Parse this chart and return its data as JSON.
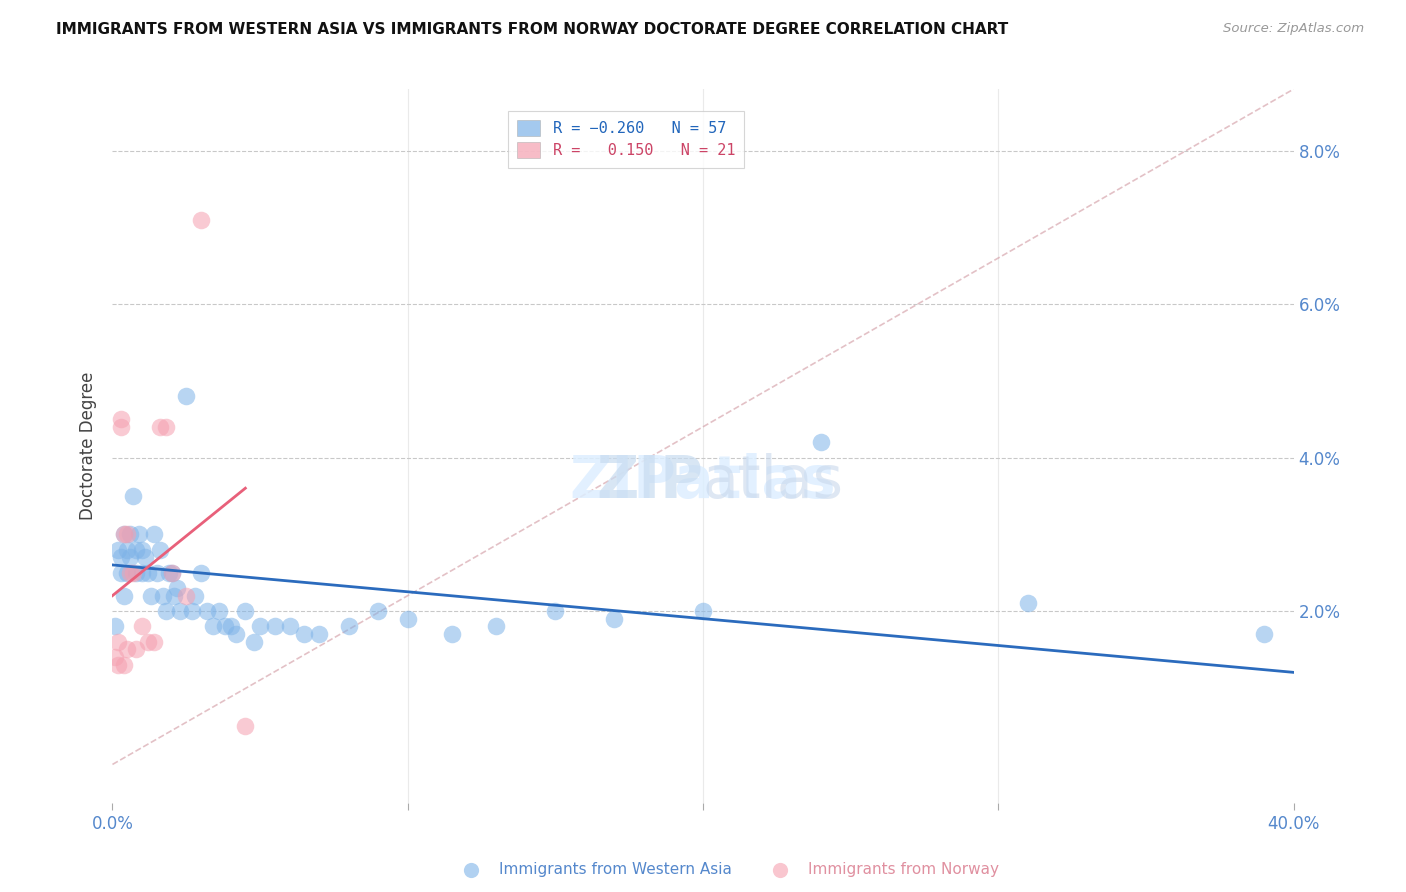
{
  "title": "IMMIGRANTS FROM WESTERN ASIA VS IMMIGRANTS FROM NORWAY DOCTORATE DEGREE CORRELATION CHART",
  "source": "Source: ZipAtlas.com",
  "ylabel": "Doctorate Degree",
  "right_yticks": [
    "2.0%",
    "4.0%",
    "6.0%",
    "8.0%"
  ],
  "right_ytick_vals": [
    0.02,
    0.04,
    0.06,
    0.08
  ],
  "xlim": [
    0.0,
    0.4
  ],
  "ylim": [
    -0.005,
    0.088
  ],
  "blue_color": "#7EB3E8",
  "pink_color": "#F5A0B0",
  "line_blue": "#2B6BBD",
  "line_pink": "#E8607A",
  "line_dashed_color": "#D4A0A8",
  "western_asia_x": [
    0.001,
    0.002,
    0.003,
    0.003,
    0.004,
    0.004,
    0.005,
    0.005,
    0.006,
    0.006,
    0.007,
    0.008,
    0.008,
    0.009,
    0.01,
    0.01,
    0.011,
    0.012,
    0.013,
    0.014,
    0.015,
    0.016,
    0.017,
    0.018,
    0.019,
    0.02,
    0.021,
    0.022,
    0.023,
    0.025,
    0.027,
    0.028,
    0.03,
    0.032,
    0.034,
    0.036,
    0.038,
    0.04,
    0.042,
    0.045,
    0.048,
    0.05,
    0.055,
    0.06,
    0.065,
    0.07,
    0.08,
    0.09,
    0.1,
    0.115,
    0.13,
    0.15,
    0.17,
    0.2,
    0.24,
    0.31,
    0.39
  ],
  "western_asia_y": [
    0.018,
    0.028,
    0.027,
    0.025,
    0.03,
    0.022,
    0.025,
    0.028,
    0.03,
    0.027,
    0.035,
    0.028,
    0.025,
    0.03,
    0.025,
    0.028,
    0.027,
    0.025,
    0.022,
    0.03,
    0.025,
    0.028,
    0.022,
    0.02,
    0.025,
    0.025,
    0.022,
    0.023,
    0.02,
    0.048,
    0.02,
    0.022,
    0.025,
    0.02,
    0.018,
    0.02,
    0.018,
    0.018,
    0.017,
    0.02,
    0.016,
    0.018,
    0.018,
    0.018,
    0.017,
    0.017,
    0.018,
    0.02,
    0.019,
    0.017,
    0.018,
    0.02,
    0.019,
    0.02,
    0.042,
    0.021,
    0.017
  ],
  "norway_x": [
    0.001,
    0.002,
    0.002,
    0.003,
    0.003,
    0.004,
    0.004,
    0.005,
    0.005,
    0.006,
    0.007,
    0.008,
    0.01,
    0.012,
    0.014,
    0.016,
    0.018,
    0.02,
    0.025,
    0.03,
    0.045
  ],
  "norway_y": [
    0.014,
    0.013,
    0.016,
    0.044,
    0.045,
    0.03,
    0.013,
    0.03,
    0.015,
    0.025,
    0.025,
    0.015,
    0.018,
    0.016,
    0.016,
    0.044,
    0.044,
    0.025,
    0.022,
    0.071,
    0.005
  ],
  "dashed_line_x": [
    0.0,
    0.4
  ],
  "dashed_line_y": [
    0.0,
    0.088
  ],
  "blue_trendline_x": [
    0.0,
    0.4
  ],
  "blue_trendline_y_start": 0.026,
  "blue_trendline_y_end": 0.012,
  "pink_trendline_x_start": 0.0,
  "pink_trendline_x_end": 0.045,
  "pink_trendline_y_start": 0.022,
  "pink_trendline_y_end": 0.036
}
